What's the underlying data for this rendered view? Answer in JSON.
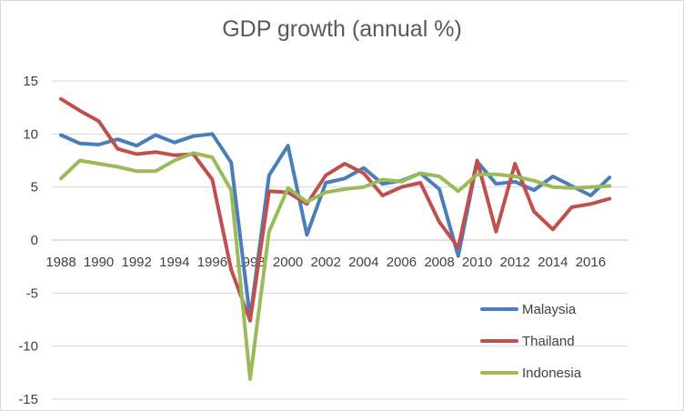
{
  "chart_data": {
    "type": "line",
    "title": "GDP growth (annual %)",
    "xlabel": "",
    "ylabel": "",
    "ylim": [
      -15,
      15
    ],
    "yticks": [
      -15,
      -10,
      -5,
      0,
      5,
      10,
      15
    ],
    "x": [
      1988,
      1989,
      1990,
      1991,
      1992,
      1993,
      1994,
      1995,
      1996,
      1997,
      1998,
      1999,
      2000,
      2001,
      2002,
      2003,
      2004,
      2005,
      2006,
      2007,
      2008,
      2009,
      2010,
      2011,
      2012,
      2013,
      2014,
      2015,
      2016,
      2017
    ],
    "xtick_labels": [
      "1988",
      "1990",
      "1992",
      "1994",
      "1996",
      "1998",
      "2000",
      "2002",
      "2004",
      "2006",
      "2008",
      "2010",
      "2012",
      "2014",
      "2016"
    ],
    "grid": "horizontal",
    "legend": "right",
    "series": [
      {
        "name": "Malaysia",
        "color": "#4a7ebb",
        "values": [
          9.9,
          9.1,
          9.0,
          9.5,
          8.9,
          9.9,
          9.2,
          9.8,
          10.0,
          7.3,
          -7.4,
          6.1,
          8.9,
          0.5,
          5.4,
          5.8,
          6.8,
          5.3,
          5.6,
          6.3,
          4.8,
          -1.5,
          7.4,
          5.3,
          5.5,
          4.7,
          6.0,
          5.1,
          4.2,
          5.9
        ]
      },
      {
        "name": "Thailand",
        "color": "#c0504d",
        "values": [
          13.3,
          12.2,
          11.2,
          8.6,
          8.1,
          8.3,
          8.0,
          8.1,
          5.7,
          -2.8,
          -7.6,
          4.6,
          4.5,
          3.4,
          6.1,
          7.2,
          6.3,
          4.2,
          5.0,
          5.4,
          1.7,
          -0.7,
          7.5,
          0.8,
          7.2,
          2.7,
          1.0,
          3.1,
          3.4,
          3.9
        ]
      },
      {
        "name": "Indonesia",
        "color": "#9bbb59",
        "values": [
          5.8,
          7.5,
          7.2,
          6.9,
          6.5,
          6.5,
          7.5,
          8.2,
          7.8,
          4.7,
          -13.1,
          0.8,
          4.9,
          3.6,
          4.5,
          4.8,
          5.0,
          5.7,
          5.5,
          6.3,
          6.0,
          4.6,
          6.2,
          6.2,
          6.0,
          5.6,
          5.0,
          4.9,
          5.0,
          5.1
        ]
      }
    ]
  }
}
